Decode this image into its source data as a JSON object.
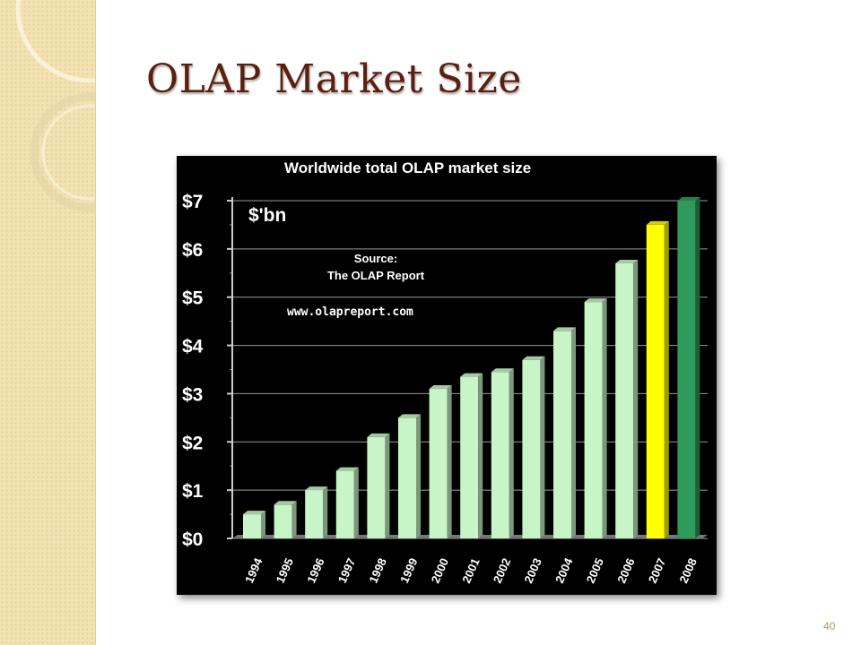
{
  "slide": {
    "title": "OLAP Market Size",
    "number": "40"
  },
  "chart_data": {
    "type": "bar",
    "title": "Worldwide total OLAP market size",
    "unit_label": "$'bn",
    "annotations": [
      "Source:",
      "The OLAP Report",
      "www.olapreport.com"
    ],
    "categories": [
      "1994",
      "1995",
      "1996",
      "1997",
      "1998",
      "1999",
      "2000",
      "2001",
      "2002",
      "2003",
      "2004",
      "2005",
      "2006",
      "2007",
      "2008"
    ],
    "values": [
      0.5,
      0.7,
      1.0,
      1.4,
      2.1,
      2.5,
      3.1,
      3.35,
      3.45,
      3.7,
      4.3,
      4.9,
      5.7,
      6.5,
      7.0
    ],
    "bar_colors": [
      "#c8f5c8",
      "#c8f5c8",
      "#c8f5c8",
      "#c8f5c8",
      "#c8f5c8",
      "#c8f5c8",
      "#c8f5c8",
      "#c8f5c8",
      "#c8f5c8",
      "#c8f5c8",
      "#c8f5c8",
      "#c8f5c8",
      "#c8f5c8",
      "#ffff00",
      "#2e9a5c"
    ],
    "yticks": [
      "$0",
      "$1",
      "$2",
      "$3",
      "$4",
      "$5",
      "$6",
      "$7"
    ],
    "ylim": [
      0,
      7
    ],
    "grid": true,
    "background": "#000000"
  }
}
